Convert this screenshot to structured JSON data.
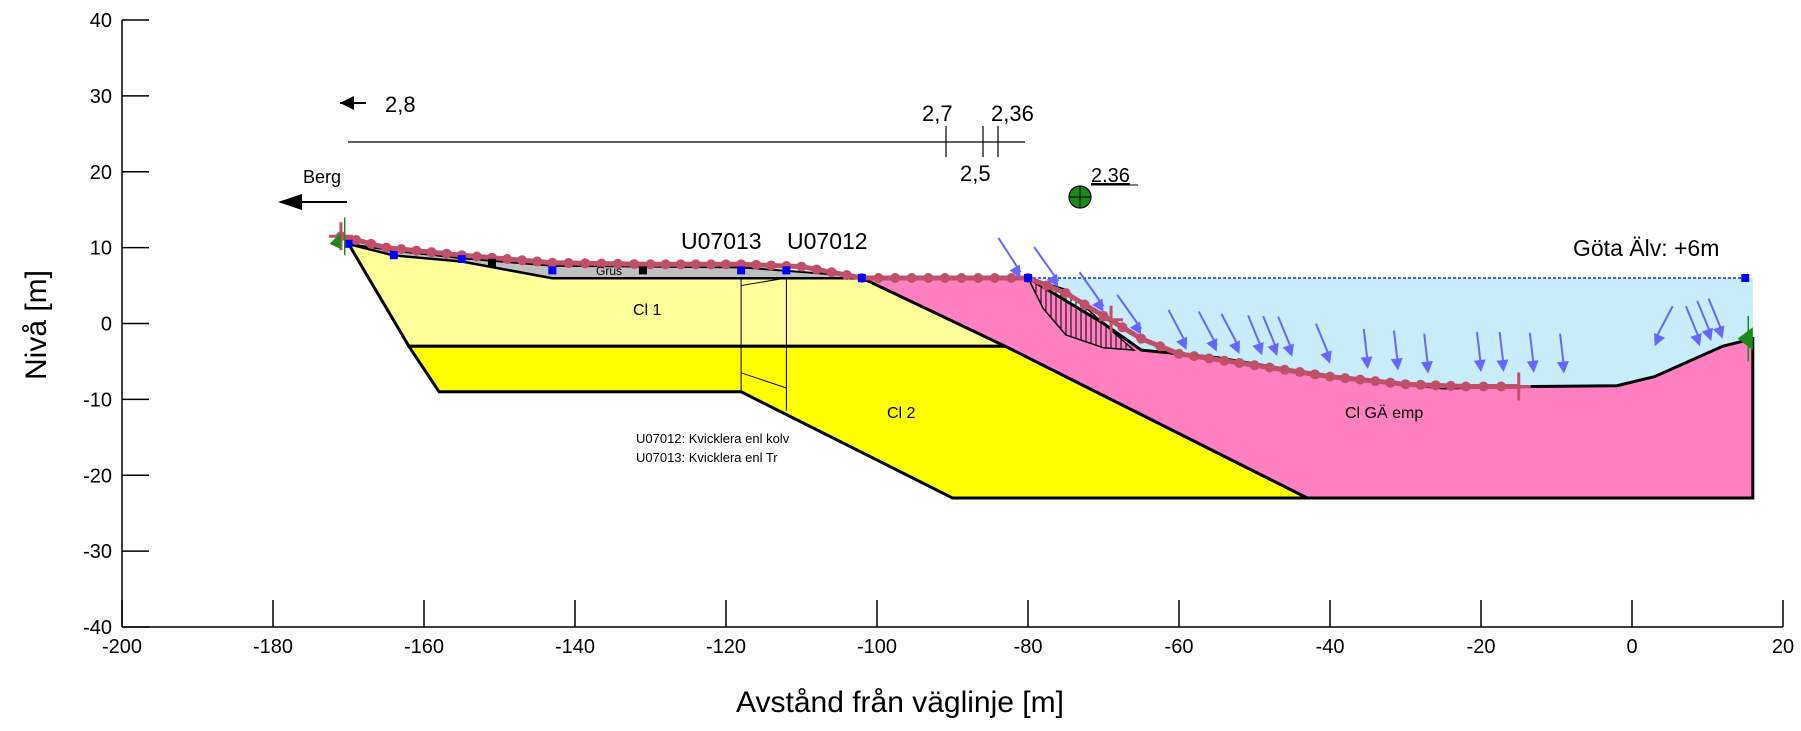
{
  "axes": {
    "xlabel": "Avstånd från väglinje [m]",
    "ylabel": "Nivå [m]",
    "xlim": [
      -200,
      20
    ],
    "ylim": [
      -40,
      40
    ],
    "xticks": [
      -200,
      -180,
      -160,
      -140,
      -120,
      -100,
      -80,
      -60,
      -40,
      -20,
      0,
      20
    ],
    "yticks": [
      -40,
      -30,
      -20,
      -10,
      0,
      10,
      20,
      30,
      40
    ]
  },
  "colors": {
    "cl1": "#ffff99",
    "cl2": "#ffff00",
    "clGA": "#ff80c0",
    "water": "#c8ecfa",
    "topFill": "#c0c0c0",
    "slip": "#c0506a",
    "load": "#6666ff",
    "marker": "#0000ff",
    "green": "#1a8a1a"
  },
  "labels": {
    "rock": "Berg",
    "f28": "2,8",
    "f27": "2,7",
    "f25": "2,5",
    "f236": "2,36",
    "f236b": "2.36",
    "bh1": "U07013",
    "bh2": "U07012",
    "river": "Göta Älv: +6m",
    "cl1": "Cl 1",
    "cl2": "Cl 2",
    "clga": "Cl GÄ emp",
    "fill": "Grus",
    "note1": "U07012: Kvicklera enl kolv",
    "note2": "U07013: Kvicklera enl Tr"
  },
  "chart_data": {
    "type": "cross-section",
    "ground_surface": [
      [
        -170,
        10.5
      ],
      [
        -164,
        9
      ],
      [
        -155,
        8.2
      ],
      [
        -143,
        7
      ],
      [
        -131,
        7
      ],
      [
        -118,
        7
      ],
      [
        -102,
        6
      ],
      [
        -80,
        6
      ],
      [
        -70,
        0
      ],
      [
        -65,
        -3.5
      ],
      [
        -55,
        -4.5
      ],
      [
        -40,
        -7
      ],
      [
        -25,
        -8.5
      ],
      [
        -13,
        -8.3
      ],
      [
        -2,
        -8.2
      ],
      [
        3,
        -7
      ],
      [
        12,
        -3
      ],
      [
        16,
        -2
      ]
    ],
    "layers": [
      {
        "name": "Cl 1",
        "polygon": [
          [
            -170,
            10.5
          ],
          [
            -164,
            9
          ],
          [
            -155,
            8.2
          ],
          [
            -143,
            6
          ],
          [
            -102,
            6
          ],
          [
            -83,
            -3
          ],
          [
            -162,
            -3
          ]
        ]
      },
      {
        "name": "Cl 2",
        "polygon": [
          [
            -162,
            -3
          ],
          [
            -83,
            -3
          ],
          [
            -43,
            -23
          ],
          [
            -90,
            -23
          ],
          [
            -118,
            -9
          ],
          [
            -158,
            -9
          ]
        ]
      },
      {
        "name": "Cl GÄ emp",
        "polygon": [
          [
            -102,
            6
          ],
          [
            -80,
            6
          ],
          [
            -70,
            0
          ],
          [
            -65,
            -3.5
          ],
          [
            -55,
            -4.5
          ],
          [
            -40,
            -7
          ],
          [
            -25,
            -8.5
          ],
          [
            -13,
            -8.3
          ],
          [
            -2,
            -8.2
          ],
          [
            3,
            -7
          ],
          [
            12,
            -3
          ],
          [
            16,
            -2
          ],
          [
            16,
            -23
          ],
          [
            -43,
            -23
          ],
          [
            -83,
            -3
          ]
        ]
      }
    ],
    "water_level": 6,
    "boreholes": [
      {
        "name": "U07013",
        "x": -118
      },
      {
        "name": "U07012",
        "x": -112
      }
    ],
    "safety_factors": [
      "2,8",
      "2,7",
      "2,5",
      "2,36"
    ]
  }
}
